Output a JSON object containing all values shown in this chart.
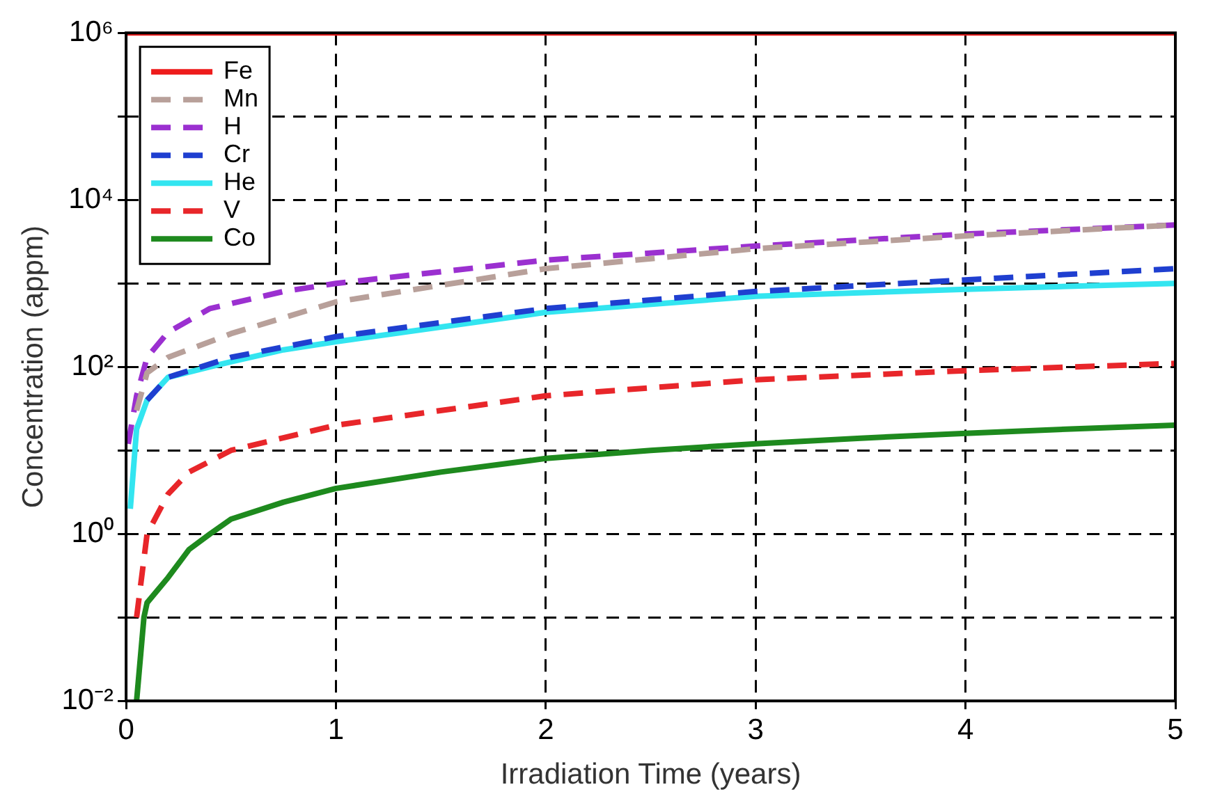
{
  "chart_data": {
    "type": "line",
    "xlabel": "Irradiation Time (years)",
    "ylabel": "Concentration (appm)",
    "xlim": [
      0,
      5
    ],
    "xticks": [
      0,
      1,
      2,
      3,
      4,
      5
    ],
    "ylim": [
      0.01,
      1000000
    ],
    "yticks": [
      {
        "value": 0.01,
        "label": "10⁻²"
      },
      {
        "value": 0.1,
        "label": null
      },
      {
        "value": 1,
        "label": "10⁰"
      },
      {
        "value": 10,
        "label": null
      },
      {
        "value": 100,
        "label": "10²"
      },
      {
        "value": 1000,
        "label": null
      },
      {
        "value": 10000,
        "label": "10⁴"
      },
      {
        "value": 100000,
        "label": null
      },
      {
        "value": 1000000,
        "label": "10⁶"
      }
    ],
    "log": "y",
    "grid": true,
    "legend": "top left",
    "marker": "none",
    "series": [
      {
        "name": "Fe",
        "color": "#ee1c1c",
        "line_style": "solid",
        "x": [
          0,
          1,
          2,
          3,
          4,
          5
        ],
        "values": [
          1000000,
          1000000,
          1000000,
          1000000,
          1000000,
          1000000
        ]
      },
      {
        "name": "Mn",
        "color": "#b8a09a",
        "line_style": "dashed",
        "x": [
          0.05,
          0.1,
          0.2,
          0.4,
          0.5,
          1,
          2,
          3,
          4,
          5
        ],
        "values": [
          30,
          85,
          130,
          200,
          250,
          600,
          1500,
          2600,
          3700,
          5000
        ]
      },
      {
        "name": "H",
        "color": "#9b30d0",
        "line_style": "dashed",
        "x": [
          0.01,
          0.05,
          0.1,
          0.2,
          0.4,
          0.75,
          1,
          2,
          3,
          4,
          5
        ],
        "values": [
          12,
          45,
          130,
          260,
          500,
          800,
          1000,
          1900,
          2800,
          3900,
          5000
        ]
      },
      {
        "name": "Cr",
        "color": "#1f3fd0",
        "line_style": "dashed",
        "x": [
          0.1,
          0.2,
          0.5,
          1,
          2,
          3,
          4,
          5
        ],
        "values": [
          40,
          75,
          130,
          230,
          500,
          800,
          1100,
          1500
        ]
      },
      {
        "name": "He",
        "color": "#33e5f0",
        "line_style": "solid",
        "x": [
          0.02,
          0.05,
          0.1,
          0.2,
          0.4,
          0.5,
          0.75,
          1,
          2,
          3,
          4,
          5
        ],
        "values": [
          2,
          18,
          40,
          75,
          100,
          115,
          160,
          200,
          450,
          700,
          850,
          1000
        ]
      },
      {
        "name": "V",
        "color": "#e8262a",
        "line_style": "dashed",
        "x": [
          0.05,
          0.1,
          0.2,
          0.3,
          0.5,
          1,
          2,
          3,
          4,
          5
        ],
        "values": [
          0.1,
          1,
          3,
          5.5,
          10,
          20,
          45,
          70,
          90,
          110
        ]
      },
      {
        "name": "Co",
        "color": "#1e8a1e",
        "line_style": "solid",
        "x": [
          0.05,
          0.085,
          0.1,
          0.2,
          0.3,
          0.4,
          0.5,
          0.75,
          1,
          1.5,
          2,
          2.5,
          3,
          3.5,
          4,
          4.5,
          5
        ],
        "values": [
          0.01,
          0.1,
          0.15,
          0.3,
          0.65,
          1,
          1.5,
          2.4,
          3.5,
          5.5,
          8,
          10,
          12,
          14,
          16,
          18,
          20
        ]
      }
    ]
  }
}
